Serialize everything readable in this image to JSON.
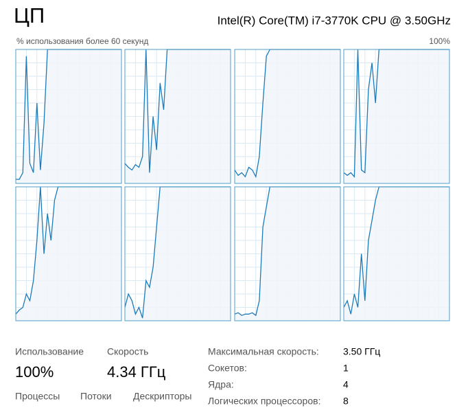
{
  "header": {
    "title": "ЦП",
    "cpu_name": "Intel(R) Core(TM) i7-3770K CPU @ 3.50GHz"
  },
  "graph_panel": {
    "x_label": "% использования более 60 секунд",
    "y_max_label": "100%",
    "ylim": [
      0,
      100
    ],
    "series": [
      {
        "values": [
          3,
          3,
          8,
          95,
          15,
          8,
          60,
          10,
          45,
          100,
          100,
          100,
          100,
          100,
          100,
          100,
          100,
          100,
          100,
          100,
          100,
          100,
          100,
          100,
          100,
          100,
          100,
          100,
          100,
          100,
          100
        ]
      },
      {
        "values": [
          15,
          12,
          10,
          14,
          12,
          20,
          100,
          8,
          50,
          25,
          75,
          55,
          100,
          100,
          100,
          100,
          100,
          100,
          100,
          100,
          100,
          100,
          100,
          100,
          100,
          100,
          100,
          100,
          100,
          100,
          100
        ]
      },
      {
        "values": [
          10,
          6,
          8,
          5,
          12,
          10,
          5,
          20,
          60,
          95,
          100,
          100,
          100,
          100,
          100,
          100,
          100,
          100,
          100,
          100,
          100,
          100,
          100,
          100,
          100,
          100,
          100,
          100,
          100,
          100,
          100
        ]
      },
      {
        "values": [
          8,
          6,
          8,
          5,
          100,
          10,
          8,
          70,
          90,
          60,
          100,
          100,
          100,
          100,
          100,
          100,
          100,
          100,
          100,
          100,
          100,
          100,
          100,
          100,
          100,
          100,
          100,
          100,
          100,
          100,
          100
        ]
      },
      {
        "values": [
          5,
          8,
          10,
          20,
          15,
          30,
          60,
          100,
          50,
          80,
          60,
          90,
          100,
          100,
          100,
          100,
          100,
          100,
          100,
          100,
          100,
          100,
          100,
          100,
          100,
          100,
          100,
          100,
          100,
          100,
          100
        ]
      },
      {
        "values": [
          10,
          20,
          15,
          5,
          10,
          2,
          30,
          25,
          40,
          70,
          100,
          100,
          100,
          100,
          100,
          100,
          100,
          100,
          100,
          100,
          100,
          100,
          100,
          100,
          100,
          100,
          100,
          100,
          100,
          100,
          100
        ]
      },
      {
        "values": [
          5,
          6,
          4,
          5,
          5,
          6,
          4,
          15,
          70,
          85,
          100,
          100,
          100,
          100,
          100,
          100,
          100,
          100,
          100,
          100,
          100,
          100,
          100,
          100,
          100,
          100,
          100,
          100,
          100,
          100,
          100
        ]
      },
      {
        "values": [
          10,
          15,
          5,
          20,
          10,
          50,
          15,
          60,
          75,
          90,
          100,
          100,
          100,
          100,
          100,
          100,
          100,
          100,
          100,
          100,
          100,
          100,
          100,
          100,
          100,
          100,
          100,
          100,
          100,
          100,
          100
        ]
      }
    ]
  },
  "stats": {
    "utilization": {
      "label": "Использование",
      "value": "100%"
    },
    "speed": {
      "label": "Скорость",
      "value": "4.34 ГГц"
    },
    "counters": [
      "Процессы",
      "Потоки",
      "Дескрипторы"
    ]
  },
  "specs": [
    {
      "label": "Максимальная скорость:",
      "value": "3.50 ГГц"
    },
    {
      "label": "Сокетов:",
      "value": 1
    },
    {
      "label": "Ядра:",
      "value": 4
    },
    {
      "label": "Логических процессоров:",
      "value": 8
    }
  ]
}
